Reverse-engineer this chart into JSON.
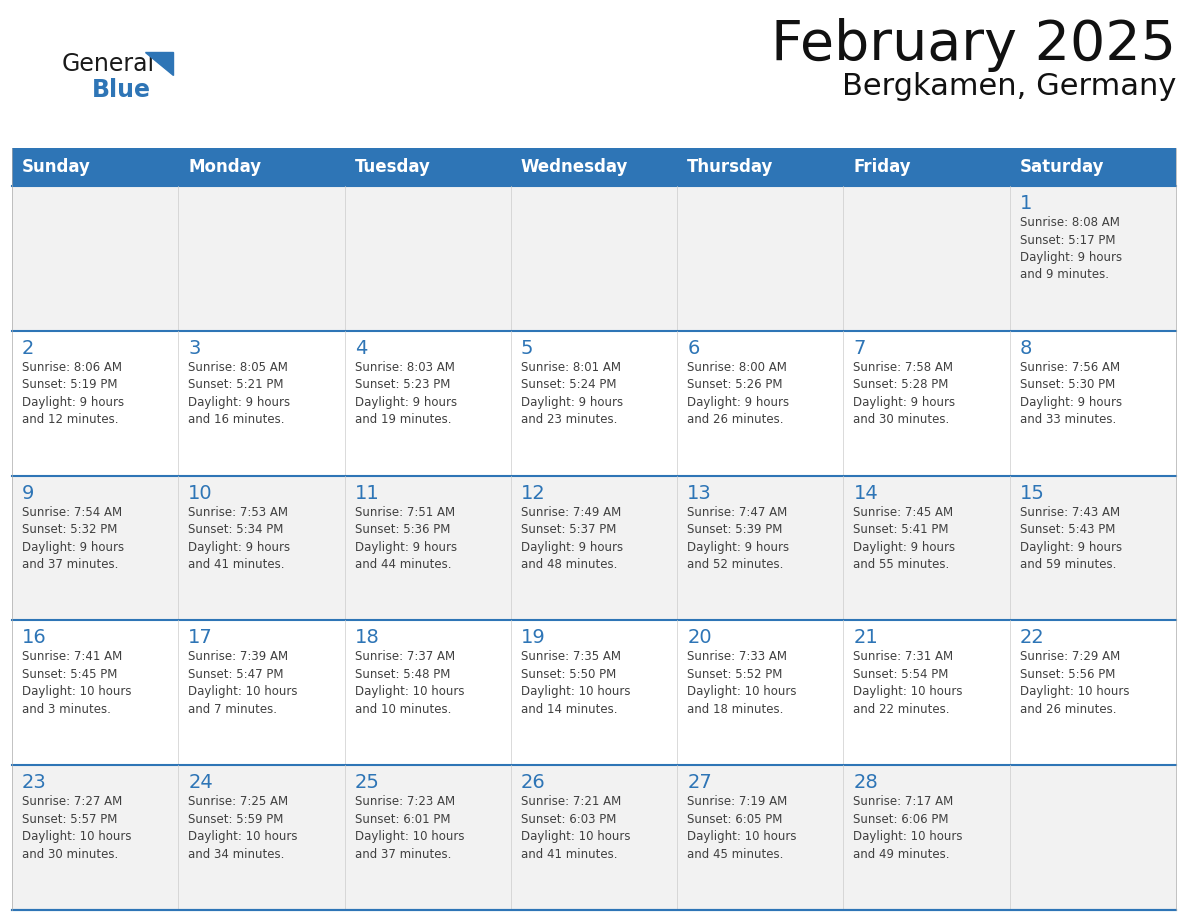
{
  "title": "February 2025",
  "subtitle": "Bergkamen, Germany",
  "header_bg": "#2E75B6",
  "header_text_color": "#FFFFFF",
  "cell_bg_white": "#FFFFFF",
  "cell_bg_light": "#F2F2F2",
  "grid_line_color": "#2E75B6",
  "day_number_color": "#2E75B6",
  "text_color": "#404040",
  "days_of_week": [
    "Sunday",
    "Monday",
    "Tuesday",
    "Wednesday",
    "Thursday",
    "Friday",
    "Saturday"
  ],
  "logo_general_color": "#1a1a1a",
  "logo_blue_color": "#2E75B6",
  "weeks": [
    [
      {
        "day": null,
        "info": null
      },
      {
        "day": null,
        "info": null
      },
      {
        "day": null,
        "info": null
      },
      {
        "day": null,
        "info": null
      },
      {
        "day": null,
        "info": null
      },
      {
        "day": null,
        "info": null
      },
      {
        "day": 1,
        "info": "Sunrise: 8:08 AM\nSunset: 5:17 PM\nDaylight: 9 hours\nand 9 minutes."
      }
    ],
    [
      {
        "day": 2,
        "info": "Sunrise: 8:06 AM\nSunset: 5:19 PM\nDaylight: 9 hours\nand 12 minutes."
      },
      {
        "day": 3,
        "info": "Sunrise: 8:05 AM\nSunset: 5:21 PM\nDaylight: 9 hours\nand 16 minutes."
      },
      {
        "day": 4,
        "info": "Sunrise: 8:03 AM\nSunset: 5:23 PM\nDaylight: 9 hours\nand 19 minutes."
      },
      {
        "day": 5,
        "info": "Sunrise: 8:01 AM\nSunset: 5:24 PM\nDaylight: 9 hours\nand 23 minutes."
      },
      {
        "day": 6,
        "info": "Sunrise: 8:00 AM\nSunset: 5:26 PM\nDaylight: 9 hours\nand 26 minutes."
      },
      {
        "day": 7,
        "info": "Sunrise: 7:58 AM\nSunset: 5:28 PM\nDaylight: 9 hours\nand 30 minutes."
      },
      {
        "day": 8,
        "info": "Sunrise: 7:56 AM\nSunset: 5:30 PM\nDaylight: 9 hours\nand 33 minutes."
      }
    ],
    [
      {
        "day": 9,
        "info": "Sunrise: 7:54 AM\nSunset: 5:32 PM\nDaylight: 9 hours\nand 37 minutes."
      },
      {
        "day": 10,
        "info": "Sunrise: 7:53 AM\nSunset: 5:34 PM\nDaylight: 9 hours\nand 41 minutes."
      },
      {
        "day": 11,
        "info": "Sunrise: 7:51 AM\nSunset: 5:36 PM\nDaylight: 9 hours\nand 44 minutes."
      },
      {
        "day": 12,
        "info": "Sunrise: 7:49 AM\nSunset: 5:37 PM\nDaylight: 9 hours\nand 48 minutes."
      },
      {
        "day": 13,
        "info": "Sunrise: 7:47 AM\nSunset: 5:39 PM\nDaylight: 9 hours\nand 52 minutes."
      },
      {
        "day": 14,
        "info": "Sunrise: 7:45 AM\nSunset: 5:41 PM\nDaylight: 9 hours\nand 55 minutes."
      },
      {
        "day": 15,
        "info": "Sunrise: 7:43 AM\nSunset: 5:43 PM\nDaylight: 9 hours\nand 59 minutes."
      }
    ],
    [
      {
        "day": 16,
        "info": "Sunrise: 7:41 AM\nSunset: 5:45 PM\nDaylight: 10 hours\nand 3 minutes."
      },
      {
        "day": 17,
        "info": "Sunrise: 7:39 AM\nSunset: 5:47 PM\nDaylight: 10 hours\nand 7 minutes."
      },
      {
        "day": 18,
        "info": "Sunrise: 7:37 AM\nSunset: 5:48 PM\nDaylight: 10 hours\nand 10 minutes."
      },
      {
        "day": 19,
        "info": "Sunrise: 7:35 AM\nSunset: 5:50 PM\nDaylight: 10 hours\nand 14 minutes."
      },
      {
        "day": 20,
        "info": "Sunrise: 7:33 AM\nSunset: 5:52 PM\nDaylight: 10 hours\nand 18 minutes."
      },
      {
        "day": 21,
        "info": "Sunrise: 7:31 AM\nSunset: 5:54 PM\nDaylight: 10 hours\nand 22 minutes."
      },
      {
        "day": 22,
        "info": "Sunrise: 7:29 AM\nSunset: 5:56 PM\nDaylight: 10 hours\nand 26 minutes."
      }
    ],
    [
      {
        "day": 23,
        "info": "Sunrise: 7:27 AM\nSunset: 5:57 PM\nDaylight: 10 hours\nand 30 minutes."
      },
      {
        "day": 24,
        "info": "Sunrise: 7:25 AM\nSunset: 5:59 PM\nDaylight: 10 hours\nand 34 minutes."
      },
      {
        "day": 25,
        "info": "Sunrise: 7:23 AM\nSunset: 6:01 PM\nDaylight: 10 hours\nand 37 minutes."
      },
      {
        "day": 26,
        "info": "Sunrise: 7:21 AM\nSunset: 6:03 PM\nDaylight: 10 hours\nand 41 minutes."
      },
      {
        "day": 27,
        "info": "Sunrise: 7:19 AM\nSunset: 6:05 PM\nDaylight: 10 hours\nand 45 minutes."
      },
      {
        "day": 28,
        "info": "Sunrise: 7:17 AM\nSunset: 6:06 PM\nDaylight: 10 hours\nand 49 minutes."
      },
      {
        "day": null,
        "info": null
      }
    ]
  ]
}
